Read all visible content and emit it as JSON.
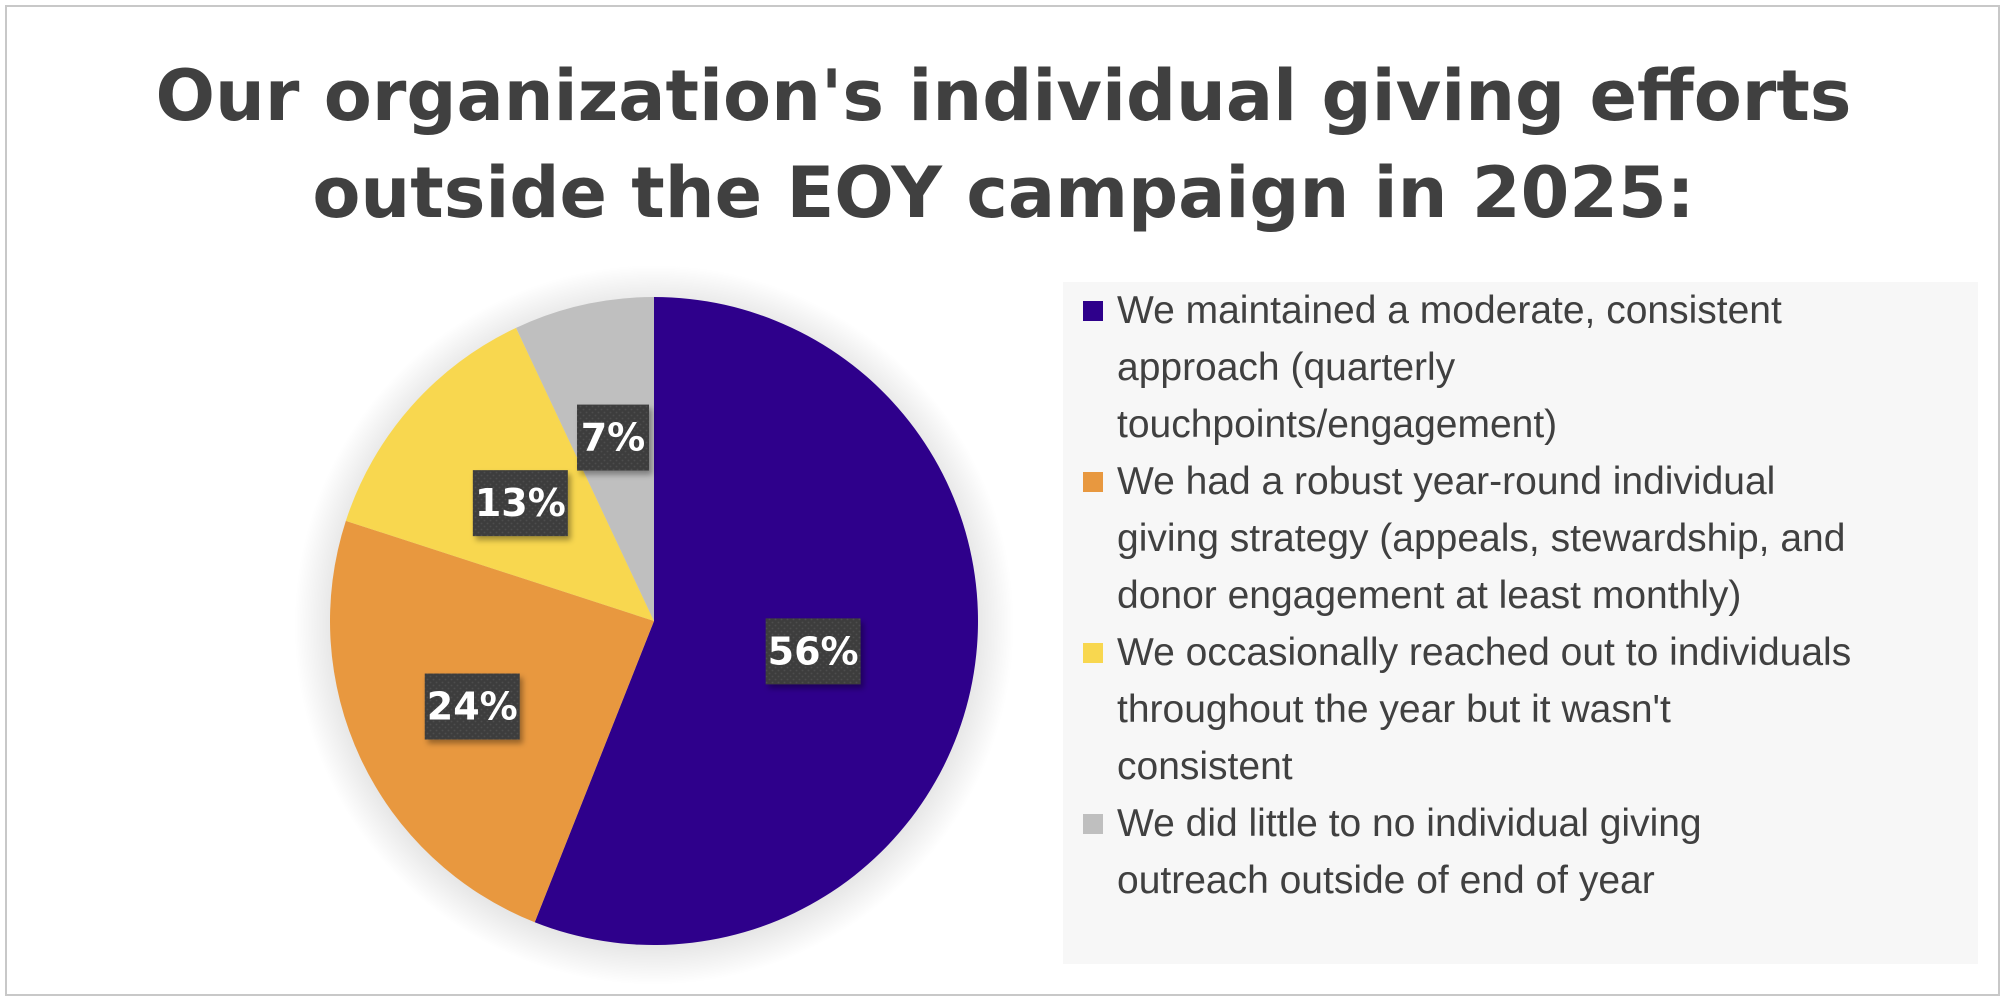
{
  "chart_data": {
    "type": "pie",
    "title": "Our organization's individual giving efforts outside the EOY campaign in 2025:",
    "title_lines": [
      "Our organization's individual giving efforts",
      "outside the EOY campaign in 2025:"
    ],
    "slices": [
      {
        "label": "We maintained a moderate, consistent approach (quarterly touchpoints/engagement)",
        "label_lines": "We maintained a moderate, consistent\napproach (quarterly\ntouchpoints/engagement)",
        "value": 56,
        "data_label": "56%",
        "color": "#2e008b"
      },
      {
        "label": "We had a robust year-round individual giving strategy (appeals, stewardship, and donor engagement at least monthly)",
        "label_lines": "We had a robust year-round individual\ngiving strategy (appeals, stewardship, and\ndonor engagement at least monthly)",
        "value": 24,
        "data_label": "24%",
        "color": "#e8983f"
      },
      {
        "label": "We occasionally reached out to individuals throughout the year but it wasn't consistent",
        "label_lines": "We occasionally reached out to individuals\nthroughout the year but it wasn't\nconsistent",
        "value": 13,
        "data_label": "13%",
        "color": "#f8d74f"
      },
      {
        "label": "We did little to no individual giving outreach outside of end of year",
        "label_lines": "We did little to no individual giving\noutreach outside of end of year",
        "value": 7,
        "data_label": "7%",
        "color": "#bfbfbf"
      }
    ],
    "legend_position": "right",
    "data_label_style": "dark-box"
  }
}
